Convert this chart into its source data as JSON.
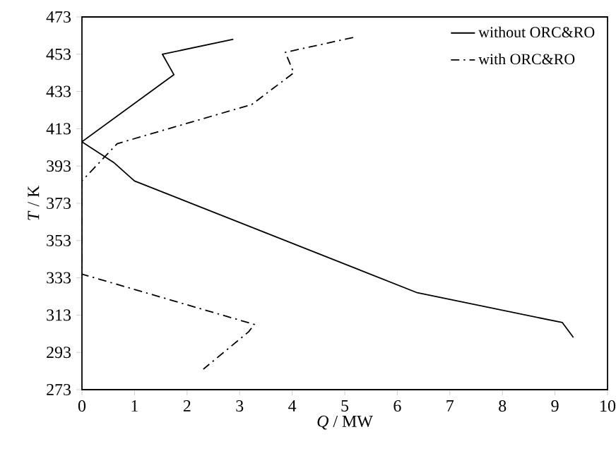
{
  "chart_data": {
    "type": "line",
    "xlabel": "*Q* / MW",
    "ylabel": "*T* / K",
    "xlim": [
      0,
      10
    ],
    "xticks": [
      0,
      1,
      2,
      3,
      4,
      5,
      6,
      7,
      8,
      9,
      10
    ],
    "ylim": [
      273,
      473
    ],
    "yticks": [
      273,
      293,
      313,
      333,
      353,
      373,
      393,
      413,
      433,
      453,
      473
    ],
    "grid": false,
    "legend": "top right",
    "marker": "none",
    "series": [
      {
        "name": "without ORC&RO",
        "color": "#000000",
        "line_style": "solid",
        "x": [
          2.88,
          1.53,
          1.75,
          0,
          0.6,
          1.0,
          6.38,
          9.14,
          9.35
        ],
        "values": [
          461,
          453,
          442,
          406,
          395,
          385,
          325,
          309,
          301
        ]
      },
      {
        "name": "with ORC&RO",
        "color": "#000000",
        "line_style": "dashdot",
        "x": [
          5.16,
          3.87,
          4.03,
          3.23,
          0.67,
          0,
          0,
          3.28,
          3.17,
          2.31
        ],
        "values": [
          462,
          454,
          443,
          426,
          405,
          385,
          335,
          308,
          304,
          284
        ]
      }
    ]
  }
}
